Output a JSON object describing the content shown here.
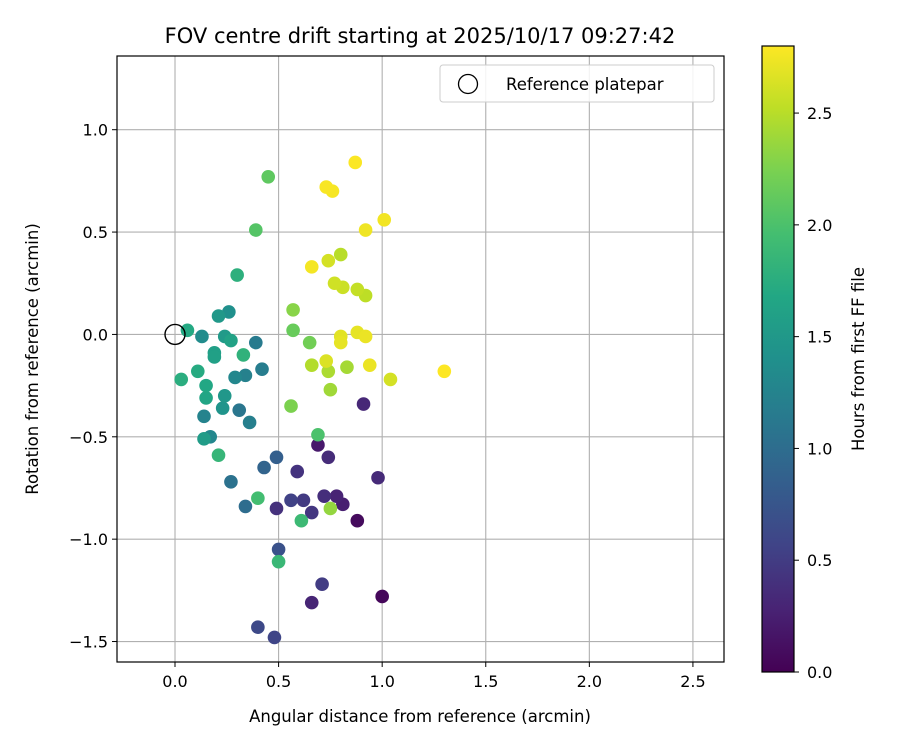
{
  "chart_data": {
    "type": "scatter",
    "title": "FOV centre drift starting at 2025/10/17 09:27:42",
    "xlabel": "Angular distance from reference (arcmin)",
    "ylabel": "Rotation from reference (arcmin)",
    "xlim": [
      -0.28,
      2.65
    ],
    "ylim": [
      -1.6,
      1.36
    ],
    "xticks": [
      0.0,
      0.5,
      1.0,
      1.5,
      2.0,
      2.5
    ],
    "xtick_labels": [
      "0.0",
      "0.5",
      "1.0",
      "1.5",
      "2.0",
      "2.5"
    ],
    "yticks": [
      -1.5,
      -1.0,
      -0.5,
      0.0,
      0.5,
      1.0
    ],
    "ytick_labels": [
      "−1.5",
      "−1.0",
      "−0.5",
      "0.0",
      "0.5",
      "1.0"
    ],
    "grid": true,
    "legend": {
      "location": "top-right",
      "entries": [
        "Reference platepar"
      ]
    },
    "reference_point": {
      "x": 0.0,
      "y": 0.0,
      "label": "Reference platepar"
    },
    "colorbar": {
      "label": "Hours from first FF file",
      "colormap": "viridis",
      "range": [
        0.0,
        2.8
      ],
      "ticks": [
        0.0,
        0.5,
        1.0,
        1.5,
        2.0,
        2.5
      ],
      "tick_labels": [
        "0.0",
        "0.5",
        "1.0",
        "1.5",
        "2.0",
        "2.5"
      ]
    },
    "points": [
      {
        "x": 1.0,
        "y": -1.28,
        "t": 0.05
      },
      {
        "x": 0.88,
        "y": -0.91,
        "t": 0.08
      },
      {
        "x": 0.69,
        "y": -0.54,
        "t": 0.2
      },
      {
        "x": 0.81,
        "y": -0.83,
        "t": 0.25
      },
      {
        "x": 0.78,
        "y": -0.79,
        "t": 0.28
      },
      {
        "x": 0.66,
        "y": -1.31,
        "t": 0.3
      },
      {
        "x": 0.91,
        "y": -0.34,
        "t": 0.32
      },
      {
        "x": 0.98,
        "y": -0.7,
        "t": 0.34
      },
      {
        "x": 0.74,
        "y": -0.6,
        "t": 0.36
      },
      {
        "x": 0.72,
        "y": -0.79,
        "t": 0.38
      },
      {
        "x": 0.49,
        "y": -0.85,
        "t": 0.4
      },
      {
        "x": 0.59,
        "y": -0.67,
        "t": 0.42
      },
      {
        "x": 0.66,
        "y": -0.87,
        "t": 0.45
      },
      {
        "x": 0.62,
        "y": -0.81,
        "t": 0.48
      },
      {
        "x": 0.71,
        "y": -1.22,
        "t": 0.5
      },
      {
        "x": 0.56,
        "y": -0.81,
        "t": 0.55
      },
      {
        "x": 0.48,
        "y": -1.48,
        "t": 0.58
      },
      {
        "x": 0.4,
        "y": -1.43,
        "t": 0.62
      },
      {
        "x": 0.5,
        "y": -1.05,
        "t": 0.7
      },
      {
        "x": 0.49,
        "y": -0.6,
        "t": 0.85
      },
      {
        "x": 0.43,
        "y": -0.65,
        "t": 0.9
      },
      {
        "x": 0.34,
        "y": -0.84,
        "t": 1.0
      },
      {
        "x": 0.27,
        "y": -0.72,
        "t": 1.05
      },
      {
        "x": 0.31,
        "y": -0.37,
        "t": 1.1
      },
      {
        "x": 0.39,
        "y": -0.04,
        "t": 1.15
      },
      {
        "x": 0.42,
        "y": -0.17,
        "t": 1.18
      },
      {
        "x": 0.36,
        "y": -0.43,
        "t": 1.2
      },
      {
        "x": 0.34,
        "y": -0.2,
        "t": 1.22
      },
      {
        "x": 0.29,
        "y": -0.21,
        "t": 1.3
      },
      {
        "x": 0.14,
        "y": -0.4,
        "t": 1.25
      },
      {
        "x": 0.17,
        "y": -0.5,
        "t": 1.3
      },
      {
        "x": 0.13,
        "y": -0.01,
        "t": 1.35
      },
      {
        "x": 0.26,
        "y": 0.11,
        "t": 1.4
      },
      {
        "x": 0.23,
        "y": -0.36,
        "t": 1.45
      },
      {
        "x": 0.24,
        "y": -0.3,
        "t": 1.48
      },
      {
        "x": 0.21,
        "y": 0.09,
        "t": 1.5
      },
      {
        "x": 0.24,
        "y": -0.01,
        "t": 1.52
      },
      {
        "x": 0.14,
        "y": -0.51,
        "t": 1.55
      },
      {
        "x": 0.19,
        "y": -0.09,
        "t": 1.58
      },
      {
        "x": 0.19,
        "y": -0.11,
        "t": 1.6
      },
      {
        "x": 0.27,
        "y": -0.03,
        "t": 1.62
      },
      {
        "x": 0.15,
        "y": -0.31,
        "t": 1.65
      },
      {
        "x": 0.15,
        "y": -0.25,
        "t": 1.68
      },
      {
        "x": 0.06,
        "y": 0.02,
        "t": 1.7
      },
      {
        "x": 0.11,
        "y": -0.18,
        "t": 1.72
      },
      {
        "x": 0.03,
        "y": -0.22,
        "t": 1.75
      },
      {
        "x": 0.3,
        "y": 0.29,
        "t": 1.78
      },
      {
        "x": 0.33,
        "y": -0.1,
        "t": 1.8
      },
      {
        "x": 0.21,
        "y": -0.59,
        "t": 1.85
      },
      {
        "x": 0.5,
        "y": -1.11,
        "t": 1.88
      },
      {
        "x": 0.61,
        "y": -0.91,
        "t": 1.9
      },
      {
        "x": 0.4,
        "y": -0.8,
        "t": 1.95
      },
      {
        "x": 0.69,
        "y": -0.49,
        "t": 2.0
      },
      {
        "x": 0.39,
        "y": 0.51,
        "t": 2.05
      },
      {
        "x": 0.45,
        "y": 0.77,
        "t": 2.1
      },
      {
        "x": 0.57,
        "y": 0.02,
        "t": 2.15
      },
      {
        "x": 0.65,
        "y": -0.04,
        "t": 2.2
      },
      {
        "x": 0.56,
        "y": -0.35,
        "t": 2.25
      },
      {
        "x": 0.57,
        "y": 0.12,
        "t": 2.3
      },
      {
        "x": 0.75,
        "y": -0.85,
        "t": 2.35
      },
      {
        "x": 0.75,
        "y": -0.27,
        "t": 2.4
      },
      {
        "x": 0.83,
        "y": -0.16,
        "t": 2.42
      },
      {
        "x": 0.74,
        "y": -0.18,
        "t": 2.45
      },
      {
        "x": 0.66,
        "y": -0.15,
        "t": 2.48
      },
      {
        "x": 0.8,
        "y": 0.39,
        "t": 2.5
      },
      {
        "x": 0.92,
        "y": 0.19,
        "t": 2.52
      },
      {
        "x": 0.88,
        "y": 0.22,
        "t": 2.55
      },
      {
        "x": 0.81,
        "y": 0.23,
        "t": 2.58
      },
      {
        "x": 0.77,
        "y": 0.25,
        "t": 2.6
      },
      {
        "x": 1.04,
        "y": -0.22,
        "t": 2.62
      },
      {
        "x": 0.74,
        "y": 0.36,
        "t": 2.62
      },
      {
        "x": 0.73,
        "y": -0.13,
        "t": 2.65
      },
      {
        "x": 0.8,
        "y": -0.01,
        "t": 2.68
      },
      {
        "x": 0.8,
        "y": -0.04,
        "t": 2.7
      },
      {
        "x": 0.88,
        "y": 0.01,
        "t": 2.7
      },
      {
        "x": 0.92,
        "y": -0.01,
        "t": 2.72
      },
      {
        "x": 0.94,
        "y": -0.15,
        "t": 2.72
      },
      {
        "x": 0.92,
        "y": 0.51,
        "t": 2.74
      },
      {
        "x": 1.01,
        "y": 0.56,
        "t": 2.75
      },
      {
        "x": 0.66,
        "y": 0.33,
        "t": 2.76
      },
      {
        "x": 0.76,
        "y": 0.7,
        "t": 2.77
      },
      {
        "x": 0.73,
        "y": 0.72,
        "t": 2.78
      },
      {
        "x": 0.87,
        "y": 0.84,
        "t": 2.79
      },
      {
        "x": 1.3,
        "y": -0.18,
        "t": 2.8
      }
    ]
  }
}
